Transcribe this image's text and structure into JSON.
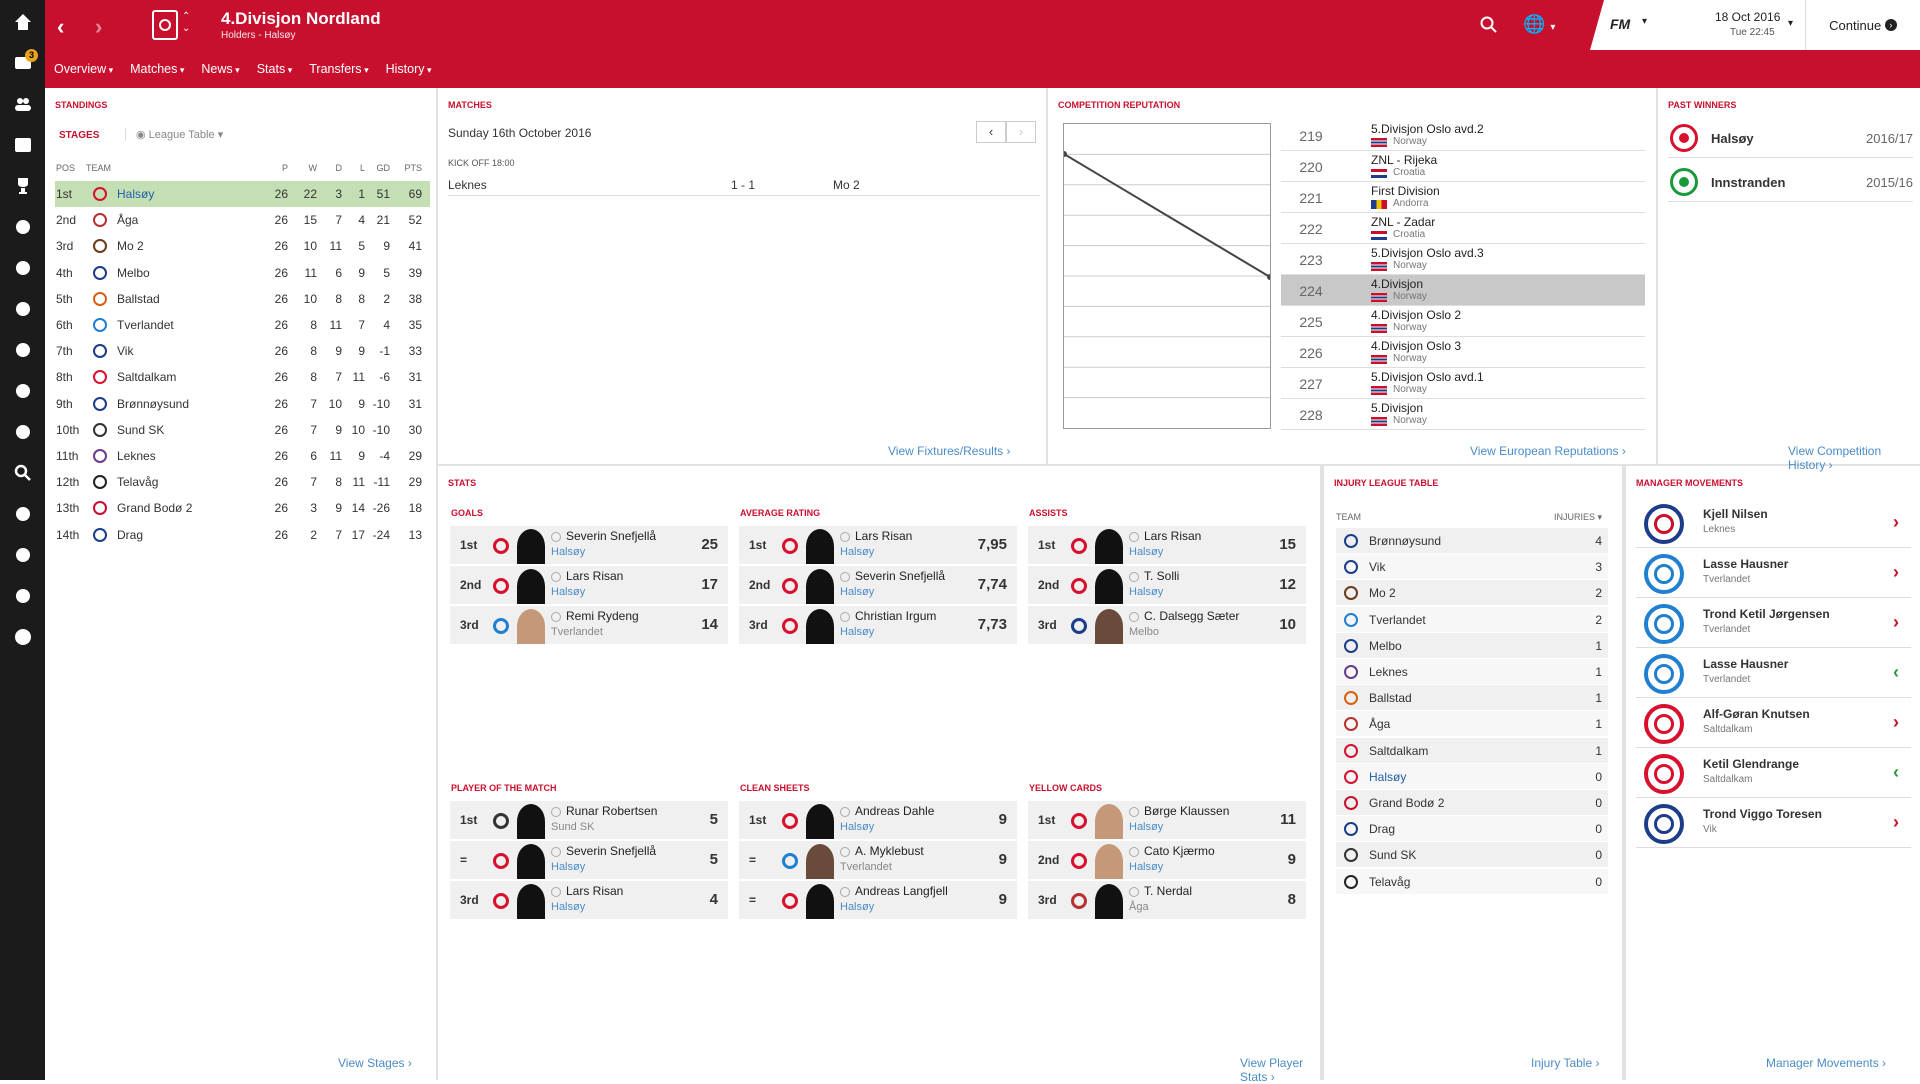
{
  "header": {
    "title": "4.Divisjon Nordland",
    "subtitle": "Holders - Halsøy",
    "menus": [
      "Overview",
      "Matches",
      "News",
      "Stats",
      "Transfers",
      "History"
    ],
    "date": "18 Oct 2016",
    "time": "Tue 22:45",
    "continue_label": "Continue",
    "fm_logo": "FM"
  },
  "sidebar": {
    "icons": [
      "home-icon",
      "inbox-icon",
      "squad-icon",
      "schedule-icon",
      "trophy-icon",
      "staff-icon",
      "training-icon",
      "tactics-icon",
      "scouting-icon",
      "development-icon",
      "coach-icon",
      "search-icon",
      "transfer-icon",
      "shield-icon",
      "finance-icon",
      "money-icon"
    ],
    "inbox_badge": "3"
  },
  "standings": {
    "title": "Standings",
    "stages_label": "STAGES",
    "dropdown_label": "League Table",
    "columns": [
      "POS",
      "TEAM",
      "P",
      "W",
      "D",
      "L",
      "GD",
      "PTS"
    ],
    "rows": [
      {
        "pos": "1st",
        "team": "Halsøy",
        "p": 26,
        "w": 22,
        "d": 3,
        "l": 1,
        "gd": 51,
        "pts": 69,
        "color": "#d8102e"
      },
      {
        "pos": "2nd",
        "team": "Åga",
        "p": 26,
        "w": 15,
        "d": 7,
        "l": 4,
        "gd": 21,
        "pts": 52,
        "color": "#b83030"
      },
      {
        "pos": "3rd",
        "team": "Mo 2",
        "p": 26,
        "w": 10,
        "d": 11,
        "l": 5,
        "gd": 9,
        "pts": 41,
        "color": "#6b3b1a"
      },
      {
        "pos": "4th",
        "team": "Melbo",
        "p": 26,
        "w": 11,
        "d": 6,
        "l": 9,
        "gd": 5,
        "pts": 39,
        "color": "#1d3c8a"
      },
      {
        "pos": "5th",
        "team": "Ballstad",
        "p": 26,
        "w": 10,
        "d": 8,
        "l": 8,
        "gd": 2,
        "pts": 38,
        "color": "#d86010"
      },
      {
        "pos": "6th",
        "team": "Tverlandet",
        "p": 26,
        "w": 8,
        "d": 11,
        "l": 7,
        "gd": 4,
        "pts": 35,
        "color": "#1f7fd0"
      },
      {
        "pos": "7th",
        "team": "Vik",
        "p": 26,
        "w": 8,
        "d": 9,
        "l": 9,
        "gd": -1,
        "pts": 33,
        "color": "#1d3c8a"
      },
      {
        "pos": "8th",
        "team": "Saltdalkam",
        "p": 26,
        "w": 8,
        "d": 7,
        "l": 11,
        "gd": -6,
        "pts": 31,
        "color": "#d8102e"
      },
      {
        "pos": "9th",
        "team": "Brønnøysund",
        "p": 26,
        "w": 7,
        "d": 10,
        "l": 9,
        "gd": -10,
        "pts": 31,
        "color": "#1d3c8a"
      },
      {
        "pos": "10th",
        "team": "Sund SK",
        "p": 26,
        "w": 7,
        "d": 9,
        "l": 10,
        "gd": -10,
        "pts": 30,
        "color": "#333333"
      },
      {
        "pos": "11th",
        "team": "Leknes",
        "p": 26,
        "w": 6,
        "d": 11,
        "l": 9,
        "gd": -4,
        "pts": 29,
        "color": "#6a3b8a"
      },
      {
        "pos": "12th",
        "team": "Telavåg",
        "p": 26,
        "w": 7,
        "d": 8,
        "l": 11,
        "gd": -11,
        "pts": 29,
        "color": "#222222"
      },
      {
        "pos": "13th",
        "team": "Grand Bodø 2",
        "p": 26,
        "w": 3,
        "d": 9,
        "l": 14,
        "gd": -26,
        "pts": 18,
        "color": "#c8102e"
      },
      {
        "pos": "14th",
        "team": "Drag",
        "p": 26,
        "w": 2,
        "d": 7,
        "l": 17,
        "gd": -24,
        "pts": 13,
        "color": "#1d3c8a"
      }
    ],
    "link": "View Stages"
  },
  "matches": {
    "title": "Matches",
    "date": "Sunday 16th October 2016",
    "kickoff": "KICK OFF 18:00",
    "home": "Leknes",
    "score": "1 - 1",
    "away": "Mo 2",
    "link": "View Fixtures/Results"
  },
  "reputation": {
    "title": "Competition Reputation",
    "rows": [
      {
        "rank": "219",
        "name": "5.Divisjon Oslo avd.2",
        "country": "Norway",
        "flag": "no"
      },
      {
        "rank": "220",
        "name": "ZNL - Rijeka",
        "country": "Croatia",
        "flag": "hr"
      },
      {
        "rank": "221",
        "name": "First Division",
        "country": "Andorra",
        "flag": "ad"
      },
      {
        "rank": "222",
        "name": "ZNL - Zadar",
        "country": "Croatia",
        "flag": "hr"
      },
      {
        "rank": "223",
        "name": "5.Divisjon Oslo avd.3",
        "country": "Norway",
        "flag": "no"
      },
      {
        "rank": "224",
        "name": "4.Divisjon",
        "country": "Norway",
        "flag": "no",
        "highlight": true
      },
      {
        "rank": "225",
        "name": "4.Divisjon Oslo 2",
        "country": "Norway",
        "flag": "no"
      },
      {
        "rank": "226",
        "name": "4.Divisjon Oslo 3",
        "country": "Norway",
        "flag": "no"
      },
      {
        "rank": "227",
        "name": "5.Divisjon Oslo avd.1",
        "country": "Norway",
        "flag": "no"
      },
      {
        "rank": "228",
        "name": "5.Divisjon",
        "country": "Norway",
        "flag": "no"
      }
    ],
    "link": "View European Reputations"
  },
  "past_winners": {
    "title": "Past Winners",
    "rows": [
      {
        "team": "Halsøy",
        "season": "2016/17",
        "color": "#d8102e"
      },
      {
        "team": "Innstranden",
        "season": "2015/16",
        "color": "#1a9a3a"
      }
    ],
    "link": "View Competition History"
  },
  "stats": {
    "title": "Stats",
    "groups": [
      {
        "title": "Goals",
        "rows": [
          {
            "rank": "1st",
            "name": "Severin Snefjellå",
            "club": "Halsøy",
            "value": "25",
            "color": "#d8102e",
            "face": "silhouette",
            "club_style": "link"
          },
          {
            "rank": "2nd",
            "name": "Lars Risan",
            "club": "Halsøy",
            "value": "17",
            "color": "#d8102e",
            "face": "silhouette",
            "club_style": "link"
          },
          {
            "rank": "3rd",
            "name": "Remi Rydeng",
            "club": "Tverlandet",
            "value": "14",
            "color": "#1f7fd0",
            "face": "photo",
            "club_style": "grey"
          }
        ]
      },
      {
        "title": "Average Rating",
        "rows": [
          {
            "rank": "1st",
            "name": "Lars Risan",
            "club": "Halsøy",
            "value": "7,95",
            "color": "#d8102e",
            "face": "silhouette",
            "club_style": "link"
          },
          {
            "rank": "2nd",
            "name": "Severin Snefjellå",
            "club": "Halsøy",
            "value": "7,74",
            "color": "#d8102e",
            "face": "silhouette",
            "club_style": "link"
          },
          {
            "rank": "3rd",
            "name": "Christian Irgum",
            "club": "Halsøy",
            "value": "7,73",
            "color": "#d8102e",
            "face": "silhouette",
            "club_style": "link"
          }
        ]
      },
      {
        "title": "Assists",
        "rows": [
          {
            "rank": "1st",
            "name": "Lars Risan",
            "club": "Halsøy",
            "value": "15",
            "color": "#d8102e",
            "face": "silhouette",
            "club_style": "link"
          },
          {
            "rank": "2nd",
            "name": "T. Solli",
            "club": "Halsøy",
            "value": "12",
            "color": "#d8102e",
            "face": "silhouette",
            "club_style": "link"
          },
          {
            "rank": "3rd",
            "name": "C. Dalsegg Sæter",
            "club": "Melbo",
            "value": "10",
            "color": "#1d3c8a",
            "face": "dark",
            "club_style": "grey"
          }
        ]
      },
      {
        "title": "Player of the Match",
        "rows": [
          {
            "rank": "1st",
            "name": "Runar Robertsen",
            "club": "Sund SK",
            "value": "5",
            "color": "#333333",
            "face": "silhouette",
            "club_style": "grey"
          },
          {
            "rank": "=",
            "name": "Severin Snefjellå",
            "club": "Halsøy",
            "value": "5",
            "color": "#d8102e",
            "face": "silhouette",
            "club_style": "link"
          },
          {
            "rank": "3rd",
            "name": "Lars Risan",
            "club": "Halsøy",
            "value": "4",
            "color": "#d8102e",
            "face": "silhouette",
            "club_style": "link"
          }
        ]
      },
      {
        "title": "Clean Sheets",
        "rows": [
          {
            "rank": "1st",
            "name": "Andreas Dahle",
            "club": "Halsøy",
            "value": "9",
            "color": "#d8102e",
            "face": "silhouette",
            "club_style": "link"
          },
          {
            "rank": "=",
            "name": "A. Myklebust",
            "club": "Tverlandet",
            "value": "9",
            "color": "#1f7fd0",
            "face": "dark",
            "club_style": "grey"
          },
          {
            "rank": "=",
            "name": "Andreas Langfjell",
            "club": "Halsøy",
            "value": "9",
            "color": "#d8102e",
            "face": "silhouette",
            "club_style": "link"
          }
        ]
      },
      {
        "title": "Yellow Cards",
        "rows": [
          {
            "rank": "1st",
            "name": "Børge Klaussen",
            "club": "Halsøy",
            "value": "11",
            "color": "#d8102e",
            "face": "photo",
            "club_style": "link"
          },
          {
            "rank": "2nd",
            "name": "Cato Kjærmo",
            "club": "Halsøy",
            "value": "9",
            "color": "#d8102e",
            "face": "photo",
            "club_style": "link"
          },
          {
            "rank": "3rd",
            "name": "T. Nerdal",
            "club": "Åga",
            "value": "8",
            "color": "#b83030",
            "face": "silhouette",
            "club_style": "grey"
          }
        ]
      }
    ],
    "link": "View Player Stats"
  },
  "injury": {
    "title": "Injury League Table",
    "col_team": "TEAM",
    "col_injuries": "INJURIES",
    "rows": [
      {
        "team": "Brønnøysund",
        "value": 4,
        "color": "#1d3c8a"
      },
      {
        "team": "Vik",
        "value": 3,
        "color": "#1d3c8a"
      },
      {
        "team": "Mo 2",
        "value": 2,
        "color": "#6b3b1a"
      },
      {
        "team": "Tverlandet",
        "value": 2,
        "color": "#1f7fd0"
      },
      {
        "team": "Melbo",
        "value": 1,
        "color": "#1d3c8a"
      },
      {
        "team": "Leknes",
        "value": 1,
        "color": "#6a3b8a"
      },
      {
        "team": "Ballstad",
        "value": 1,
        "color": "#d86010"
      },
      {
        "team": "Åga",
        "value": 1,
        "color": "#b83030"
      },
      {
        "team": "Saltdalkam",
        "value": 1,
        "color": "#d8102e"
      },
      {
        "team": "Halsøy",
        "value": 0,
        "color": "#d8102e",
        "own": true
      },
      {
        "team": "Grand Bodø 2",
        "value": 0,
        "color": "#c8102e"
      },
      {
        "team": "Drag",
        "value": 0,
        "color": "#1d3c8a"
      },
      {
        "team": "Sund SK",
        "value": 0,
        "color": "#333333"
      },
      {
        "team": "Telavåg",
        "value": 0,
        "color": "#222222"
      }
    ],
    "link": "Injury Table"
  },
  "manager": {
    "title": "Manager Movements",
    "rows": [
      {
        "name": "Kjell Nilsen",
        "team": "Leknes",
        "color": "#c8102e",
        "ring": "#1d3c8a",
        "dir": "in"
      },
      {
        "name": "Lasse Hausner",
        "team": "Tverlandet",
        "color": "#1f7fd0",
        "ring": "#1f7fd0",
        "dir": "in"
      },
      {
        "name": "Trond Ketil Jørgensen",
        "team": "Tverlandet",
        "color": "#1f7fd0",
        "ring": "#1f7fd0",
        "dir": "in"
      },
      {
        "name": "Lasse Hausner",
        "team": "Tverlandet",
        "color": "#1f7fd0",
        "ring": "#1f7fd0",
        "dir": "out"
      },
      {
        "name": "Alf-Gøran Knutsen",
        "team": "Saltdalkam",
        "color": "#d8102e",
        "ring": "#d8102e",
        "dir": "in"
      },
      {
        "name": "Ketil Glendrange",
        "team": "Saltdalkam",
        "color": "#d8102e",
        "ring": "#d8102e",
        "dir": "out"
      },
      {
        "name": "Trond Viggo Toresen",
        "team": "Vik",
        "color": "#1d3c8a",
        "ring": "#1d3c8a",
        "dir": "in"
      }
    ],
    "link": "Manager Movements",
    "in_color": "#c8102e",
    "out_color": "#2a9a3a"
  },
  "colors": {
    "accent": "#c8102e",
    "highlight_row": "#c5dfb5",
    "link": "#4a8cc8"
  }
}
